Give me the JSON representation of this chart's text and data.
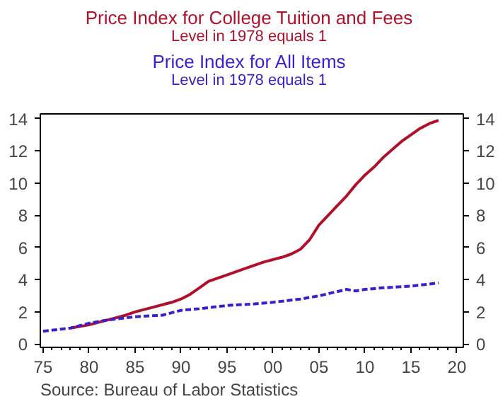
{
  "chart_data": {
    "type": "line",
    "series": [
      {
        "name": "Price Index for College Tuition and Fees\nLevel in 1978 equals 1",
        "color": "#b0102a",
        "line_style": "solid",
        "x": [
          1978,
          1980,
          1982,
          1984,
          1985,
          1987,
          1989,
          1990,
          1991,
          1992,
          1993,
          1995,
          1997,
          1999,
          2001,
          2002,
          2003,
          2004,
          2005,
          2006,
          2007,
          2008,
          2009,
          2010,
          2011,
          2012,
          2013,
          2014,
          2015,
          2016,
          2017,
          2018
        ],
        "values": [
          1.0,
          1.2,
          1.5,
          1.8,
          2.0,
          2.3,
          2.6,
          2.8,
          3.1,
          3.5,
          3.9,
          4.3,
          4.7,
          5.1,
          5.4,
          5.6,
          5.9,
          6.5,
          7.4,
          8.0,
          8.6,
          9.2,
          9.9,
          10.5,
          11.0,
          11.6,
          12.1,
          12.6,
          13.0,
          13.4,
          13.7,
          13.9
        ]
      },
      {
        "name": "Price Index for All Items\nLevel in 1978 equals 1",
        "color": "#3a1fd0",
        "line_style": "dashed",
        "x": [
          1975,
          1978,
          1980,
          1982,
          1985,
          1988,
          1990,
          1992,
          1995,
          1998,
          2000,
          2003,
          2005,
          2008,
          2009,
          2010,
          2012,
          2015,
          2018
        ],
        "values": [
          0.8,
          1.0,
          1.3,
          1.5,
          1.7,
          1.8,
          2.1,
          2.2,
          2.4,
          2.5,
          2.6,
          2.8,
          3.0,
          3.4,
          3.3,
          3.4,
          3.5,
          3.6,
          3.8
        ]
      }
    ],
    "xlim": [
      1974.7,
      2020.7
    ],
    "xticks": [
      {
        "value": 1975,
        "label": "75"
      },
      {
        "value": 1980,
        "label": "80"
      },
      {
        "value": 1985,
        "label": "85"
      },
      {
        "value": 1990,
        "label": "90"
      },
      {
        "value": 1995,
        "label": "95"
      },
      {
        "value": 2000,
        "label": "00"
      },
      {
        "value": 2005,
        "label": "05"
      },
      {
        "value": 2010,
        "label": "10"
      },
      {
        "value": 2015,
        "label": "15"
      },
      {
        "value": 2020,
        "label": "20"
      }
    ],
    "ylim": [
      -0.2,
      14.3
    ],
    "yticks": [
      0,
      2,
      4,
      6,
      8,
      10,
      12,
      14
    ],
    "y2lim": [
      -0.2,
      14.3
    ],
    "y2ticks": [
      0,
      2,
      4,
      6,
      8,
      10,
      12,
      14
    ],
    "grid": false,
    "annotations": [
      "Source:  Bureau of Labor Statistics"
    ]
  }
}
